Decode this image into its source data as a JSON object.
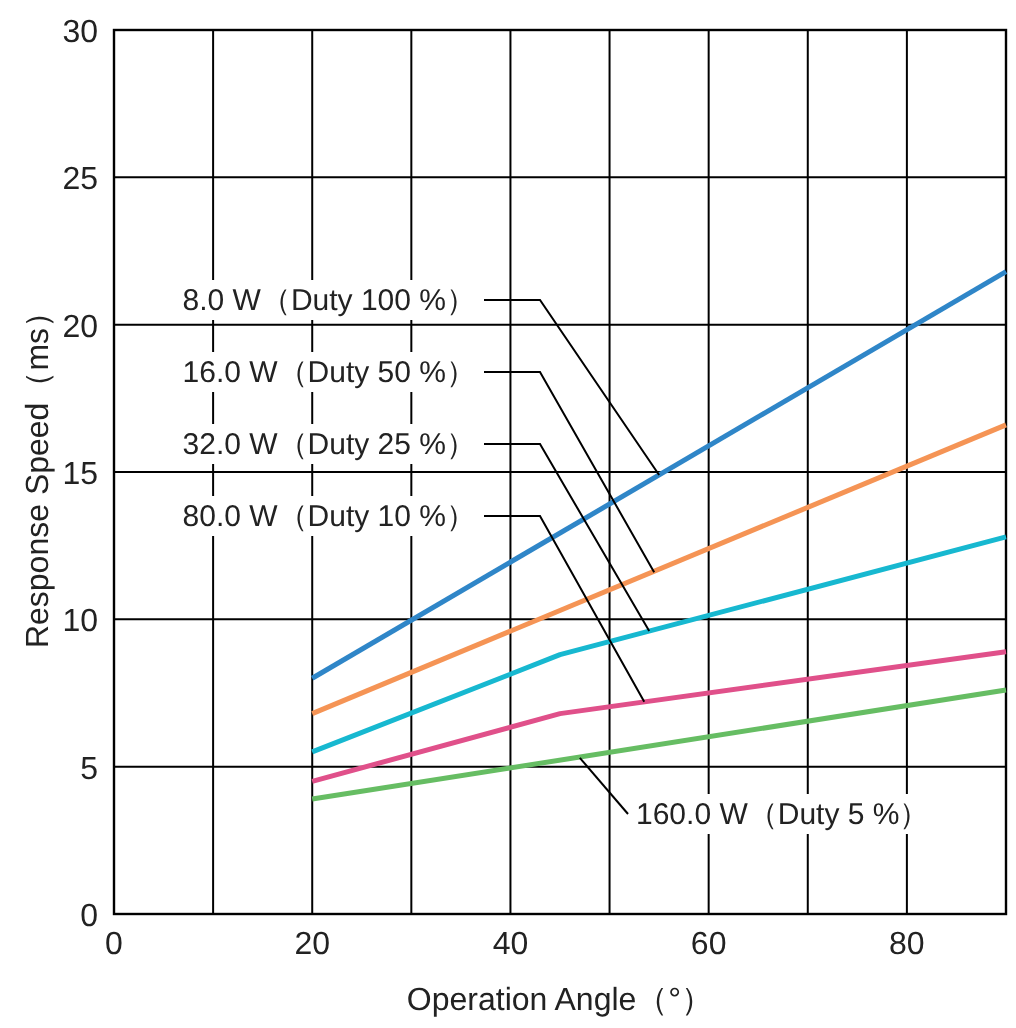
{
  "chart_data": {
    "type": "line",
    "xlabel": "Operation Angle（°）",
    "ylabel": "Response Speed（ms）",
    "xlim": [
      0,
      90
    ],
    "xticks": [
      0,
      {
        "value": 10,
        "label": null
      },
      20,
      {
        "value": 30,
        "label": null
      },
      40,
      {
        "value": 50,
        "label": null
      },
      60,
      {
        "value": 70,
        "label": null
      },
      80
    ],
    "ylim": [
      0,
      30
    ],
    "yticks": [
      0,
      5,
      10,
      15,
      20,
      25,
      30
    ],
    "grid": true,
    "marker": "none",
    "line_style": "solid",
    "series": [
      {
        "color": "#2f86c8",
        "x": [
          20,
          90
        ],
        "values": [
          8.0,
          21.8
        ]
      },
      {
        "color": "#f59455",
        "x": [
          20,
          90
        ],
        "values": [
          6.8,
          16.6
        ]
      },
      {
        "color": "#17b8d0",
        "x": [
          20,
          45,
          90
        ],
        "values": [
          5.5,
          8.8,
          12.8
        ]
      },
      {
        "color": "#e0508a",
        "x": [
          20,
          45,
          90
        ],
        "values": [
          4.5,
          6.8,
          8.9
        ]
      },
      {
        "color": "#66bd63",
        "x": [
          20,
          90
        ],
        "values": [
          3.9,
          7.6
        ]
      }
    ],
    "annotations": [
      {
        "text": "8.0 W（Duty 100 %）",
        "x": 55,
        "y": 14.9
      },
      {
        "text": "16.0 W（Duty 50 %）",
        "x": 54.5,
        "y": 11.6
      },
      {
        "text": "32.0 W（Duty 25 %）",
        "x": 54,
        "y": 9.6
      },
      {
        "text": "80.0 W（Duty 10 %）",
        "x": 53.5,
        "y": 7.2
      },
      {
        "text": "160.0 W（Duty 5 %）",
        "x": 47,
        "y": 5.3
      }
    ]
  }
}
